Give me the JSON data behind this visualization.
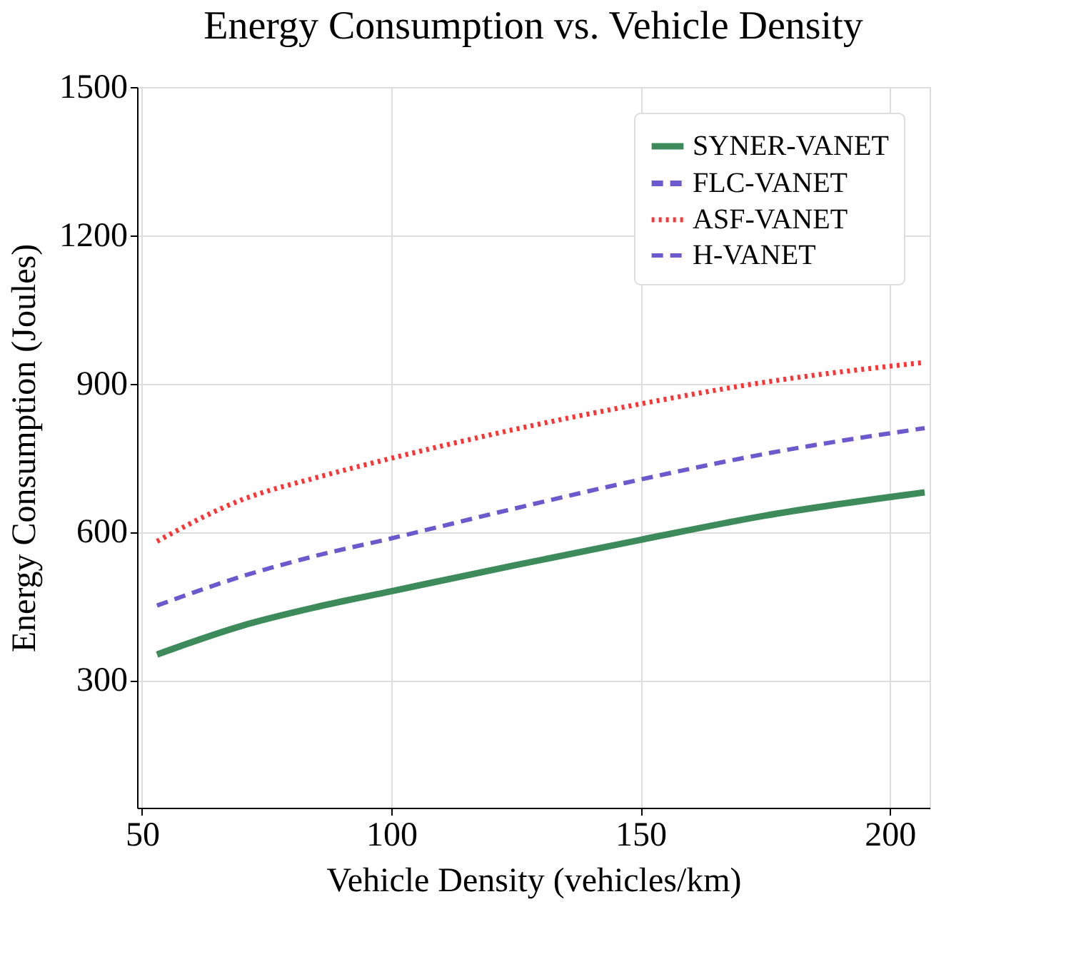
{
  "chart_data": {
    "type": "line",
    "title": "Energy Consumption vs. Vehicle Density",
    "xlabel": "Vehicle Density (vehicles/km)",
    "ylabel": "Energy Consumption (Joules)",
    "x": [
      53,
      70,
      85,
      100,
      125,
      150,
      175,
      207
    ],
    "series": [
      {
        "name": "SYNER-VANET",
        "color": "#3d8b5a",
        "line_style": "solid",
        "values": [
          352,
          410,
          448,
          480,
          533,
          584,
          633,
          680
        ]
      },
      {
        "name": "FLC-VANET",
        "color": "#6a5acd",
        "line_style": "dashed",
        "values": [
          null,
          null,
          null,
          null,
          null,
          null,
          null,
          null
        ]
      },
      {
        "name": "ASF-VANET",
        "color": "#ff3333",
        "line_style": "dotted",
        "values": [
          581,
          665,
          710,
          749,
          808,
          859,
          903,
          943
        ]
      },
      {
        "name": "H-VANET",
        "color": "#6a5acd",
        "line_style": "dashed",
        "values": [
          451,
          510,
          552,
          587,
          648,
          706,
          758,
          810
        ]
      }
    ],
    "xlim": [
      49,
      208
    ],
    "xticks": [
      50,
      100,
      150,
      200
    ],
    "ylim": [
      42,
      1500
    ],
    "yticks": [
      300,
      600,
      900,
      1200,
      1500
    ],
    "grid": true,
    "legend": "top right",
    "marker": "none"
  }
}
